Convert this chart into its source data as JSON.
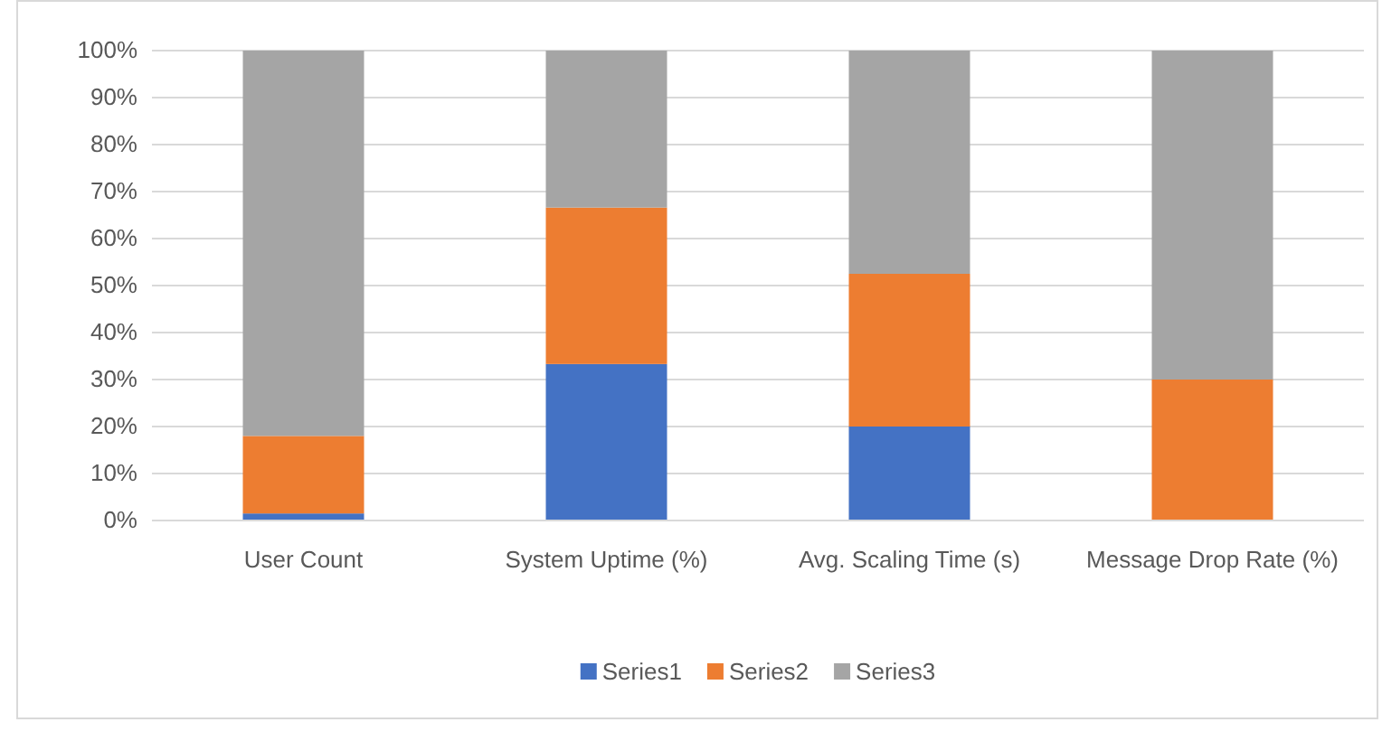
{
  "chart_data": {
    "type": "bar",
    "stacked": true,
    "categories": [
      "User Count",
      "System Uptime (%)",
      "Avg. Scaling Time (s)",
      "Message Drop Rate (%)"
    ],
    "series": [
      {
        "name": "Series1",
        "color": "#4472c4",
        "values": [
          1.5,
          33.3,
          20,
          0
        ]
      },
      {
        "name": "Series2",
        "color": "#ed7d31",
        "values": [
          16.5,
          33.3,
          32.5,
          30
        ]
      },
      {
        "name": "Series3",
        "color": "#a5a5a5",
        "values": [
          82,
          33.4,
          47.5,
          70
        ]
      }
    ],
    "ylim": [
      0,
      100
    ],
    "yticks": [
      {
        "value": 0,
        "label": "0%"
      },
      {
        "value": 10,
        "label": "10%"
      },
      {
        "value": 20,
        "label": "20%"
      },
      {
        "value": 30,
        "label": "30%"
      },
      {
        "value": 40,
        "label": "40%"
      },
      {
        "value": 50,
        "label": "50%"
      },
      {
        "value": 60,
        "label": "60%"
      },
      {
        "value": 70,
        "label": "70%"
      },
      {
        "value": 80,
        "label": "80%"
      },
      {
        "value": 90,
        "label": "90%"
      },
      {
        "value": 100,
        "label": "100%"
      }
    ],
    "grid": "y",
    "legend": "bottom"
  }
}
